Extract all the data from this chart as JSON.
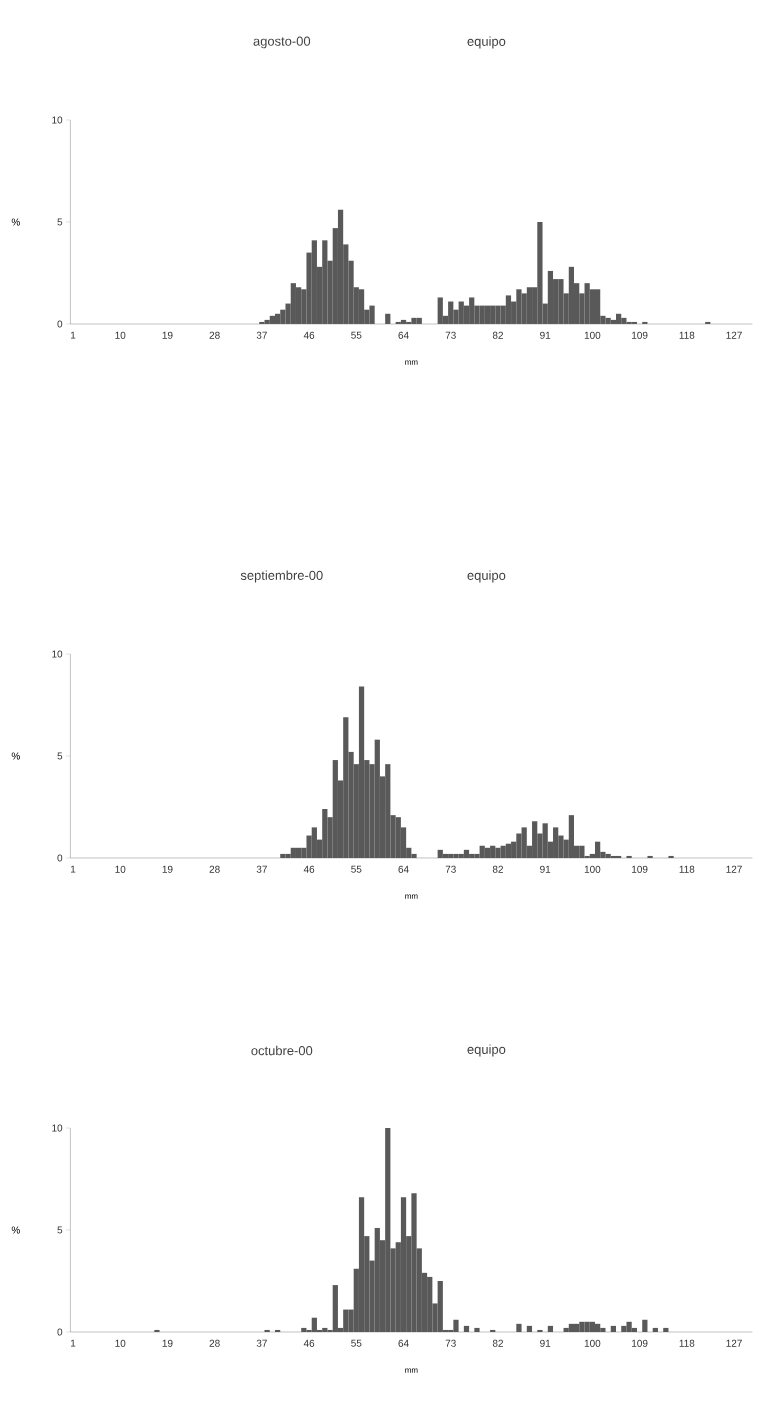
{
  "chart_data": [
    {
      "type": "bar",
      "title": "agosto-00",
      "subtitle": "equipo",
      "xlabel": "mm",
      "ylabel": "%",
      "color": "#595959",
      "ylim": [
        0,
        10
      ],
      "yticks": [
        0,
        5,
        10
      ],
      "categories": [
        "1",
        null,
        null,
        null,
        null,
        null,
        null,
        null,
        null,
        "10",
        null,
        null,
        null,
        null,
        null,
        null,
        null,
        null,
        "19",
        null,
        null,
        null,
        null,
        null,
        null,
        null,
        null,
        "28",
        null,
        null,
        null,
        null,
        null,
        null,
        null,
        null,
        "37",
        null,
        null,
        null,
        null,
        null,
        null,
        null,
        null,
        "46",
        null,
        null,
        null,
        null,
        null,
        null,
        null,
        null,
        "55",
        null,
        null,
        null,
        null,
        null,
        null,
        null,
        null,
        "64",
        null,
        null,
        null,
        null,
        null,
        null,
        null,
        null,
        "73",
        null,
        null,
        null,
        null,
        null,
        null,
        null,
        null,
        "82",
        null,
        null,
        null,
        null,
        null,
        null,
        null,
        null,
        "91",
        null,
        null,
        null,
        null,
        null,
        null,
        null,
        null,
        "100",
        null,
        null,
        null,
        null,
        null,
        null,
        null,
        null,
        "109",
        null,
        null,
        null,
        null,
        null,
        null,
        null,
        null,
        "118",
        null,
        null,
        null,
        null,
        null,
        null,
        null,
        null,
        "127",
        null,
        null,
        null
      ],
      "values": [
        0,
        0,
        0,
        0,
        0,
        0,
        0,
        0,
        0,
        0,
        0,
        0,
        0,
        0,
        0,
        0,
        0,
        0,
        0,
        0,
        0,
        0,
        0,
        0,
        0,
        0,
        0,
        0,
        0,
        0,
        0,
        0,
        0,
        0,
        0,
        0,
        0.1,
        0.2,
        0.4,
        0.5,
        0.7,
        1.0,
        2.0,
        1.8,
        1.7,
        3.5,
        4.1,
        2.8,
        4.1,
        3.1,
        4.7,
        5.6,
        3.9,
        3.1,
        1.8,
        1.7,
        0.7,
        0.9,
        0,
        0,
        0.5,
        0,
        0.1,
        0.2,
        0.1,
        0.3,
        0.3,
        0,
        0,
        0,
        1.3,
        0.4,
        1.1,
        0.7,
        1.1,
        0.9,
        1.3,
        0.9,
        0.9,
        0.9,
        0.9,
        0.9,
        0.9,
        1.4,
        1.1,
        1.7,
        1.5,
        1.8,
        1.8,
        5.0,
        1.0,
        2.6,
        2.2,
        2.2,
        1.5,
        2.8,
        2.0,
        1.5,
        2.0,
        1.7,
        1.7,
        0.4,
        0.3,
        0.2,
        0.5,
        0.3,
        0.1,
        0.1,
        0,
        0.1,
        0,
        0,
        0,
        0,
        0,
        0,
        0,
        0,
        0,
        0,
        0,
        0.1,
        0,
        0,
        0,
        0,
        0,
        0,
        0,
        0
      ]
    },
    {
      "type": "bar",
      "title": "septiembre-00",
      "subtitle": "equipo",
      "xlabel": "mm",
      "ylabel": "%",
      "color": "#595959",
      "ylim": [
        0,
        10
      ],
      "yticks": [
        0,
        5,
        10
      ],
      "categories": [
        "1",
        null,
        null,
        null,
        null,
        null,
        null,
        null,
        null,
        "10",
        null,
        null,
        null,
        null,
        null,
        null,
        null,
        null,
        "19",
        null,
        null,
        null,
        null,
        null,
        null,
        null,
        null,
        "28",
        null,
        null,
        null,
        null,
        null,
        null,
        null,
        null,
        "37",
        null,
        null,
        null,
        null,
        null,
        null,
        null,
        null,
        "46",
        null,
        null,
        null,
        null,
        null,
        null,
        null,
        null,
        "55",
        null,
        null,
        null,
        null,
        null,
        null,
        null,
        null,
        "64",
        null,
        null,
        null,
        null,
        null,
        null,
        null,
        null,
        "73",
        null,
        null,
        null,
        null,
        null,
        null,
        null,
        null,
        "82",
        null,
        null,
        null,
        null,
        null,
        null,
        null,
        null,
        "91",
        null,
        null,
        null,
        null,
        null,
        null,
        null,
        null,
        "100",
        null,
        null,
        null,
        null,
        null,
        null,
        null,
        null,
        "109",
        null,
        null,
        null,
        null,
        null,
        null,
        null,
        null,
        "118",
        null,
        null,
        null,
        null,
        null,
        null,
        null,
        null,
        "127",
        null,
        null,
        null
      ],
      "values": [
        0,
        0,
        0,
        0,
        0,
        0,
        0,
        0,
        0,
        0,
        0,
        0,
        0,
        0,
        0,
        0,
        0,
        0,
        0,
        0,
        0,
        0,
        0,
        0,
        0,
        0,
        0,
        0,
        0,
        0,
        0,
        0,
        0,
        0,
        0,
        0,
        0,
        0,
        0,
        0,
        0.2,
        0.2,
        0.5,
        0.5,
        0.5,
        1.1,
        1.5,
        0.9,
        2.4,
        2.0,
        4.8,
        3.8,
        6.9,
        5.2,
        4.6,
        8.4,
        4.8,
        4.6,
        5.8,
        4.0,
        4.6,
        2.1,
        2.0,
        1.5,
        0.5,
        0.2,
        0,
        0,
        0,
        0,
        0.4,
        0.2,
        0.2,
        0.2,
        0.2,
        0.4,
        0.2,
        0.2,
        0.6,
        0.5,
        0.6,
        0.5,
        0.6,
        0.7,
        0.8,
        1.2,
        1.5,
        0.6,
        1.8,
        1.2,
        1.7,
        0.8,
        1.5,
        1.1,
        0.9,
        2.1,
        0.6,
        0.6,
        0.1,
        0.2,
        0.8,
        0.3,
        0.2,
        0.1,
        0.1,
        0,
        0.1,
        0,
        0,
        0,
        0.1,
        0,
        0,
        0,
        0.1,
        0,
        0,
        0,
        0,
        0,
        0,
        0,
        0,
        0,
        0,
        0,
        0,
        0,
        0,
        0
      ]
    },
    {
      "type": "bar",
      "title": "octubre-00",
      "subtitle": "equipo",
      "xlabel": "mm",
      "ylabel": "%",
      "color": "#595959",
      "ylim": [
        0,
        10
      ],
      "yticks": [
        0,
        5,
        10
      ],
      "categories": [
        "1",
        null,
        null,
        null,
        null,
        null,
        null,
        null,
        null,
        "10",
        null,
        null,
        null,
        null,
        null,
        null,
        null,
        null,
        "19",
        null,
        null,
        null,
        null,
        null,
        null,
        null,
        null,
        "28",
        null,
        null,
        null,
        null,
        null,
        null,
        null,
        null,
        "37",
        null,
        null,
        null,
        null,
        null,
        null,
        null,
        null,
        "46",
        null,
        null,
        null,
        null,
        null,
        null,
        null,
        null,
        "55",
        null,
        null,
        null,
        null,
        null,
        null,
        null,
        null,
        "64",
        null,
        null,
        null,
        null,
        null,
        null,
        null,
        null,
        "73",
        null,
        null,
        null,
        null,
        null,
        null,
        null,
        null,
        "82",
        null,
        null,
        null,
        null,
        null,
        null,
        null,
        null,
        "91",
        null,
        null,
        null,
        null,
        null,
        null,
        null,
        null,
        "100",
        null,
        null,
        null,
        null,
        null,
        null,
        null,
        null,
        "109",
        null,
        null,
        null,
        null,
        null,
        null,
        null,
        null,
        "118",
        null,
        null,
        null,
        null,
        null,
        null,
        null,
        null,
        "127",
        null,
        null,
        null
      ],
      "values": [
        0,
        0,
        0,
        0,
        0,
        0,
        0,
        0,
        0,
        0,
        0,
        0,
        0,
        0,
        0,
        0,
        0.1,
        0,
        0,
        0,
        0,
        0,
        0,
        0,
        0,
        0,
        0,
        0,
        0,
        0,
        0,
        0,
        0,
        0,
        0,
        0,
        0,
        0.1,
        0,
        0.1,
        0,
        0,
        0,
        0,
        0.2,
        0.1,
        0.7,
        0.1,
        0.2,
        0.1,
        2.3,
        0.2,
        1.1,
        1.1,
        3.1,
        6.6,
        4.7,
        3.5,
        5.1,
        4.5,
        10.0,
        4.1,
        4.4,
        6.6,
        4.7,
        6.8,
        4.1,
        2.9,
        2.7,
        1.4,
        2.5,
        0.1,
        0.1,
        0.6,
        0,
        0.3,
        0,
        0.2,
        0,
        0,
        0.1,
        0,
        0,
        0,
        0,
        0.4,
        0,
        0.3,
        0,
        0.1,
        0,
        0.3,
        0,
        0,
        0.2,
        0.4,
        0.4,
        0.5,
        0.5,
        0.5,
        0.4,
        0.2,
        0,
        0.3,
        0,
        0.3,
        0.5,
        0.2,
        0,
        0.6,
        0,
        0.2,
        0,
        0.2,
        0,
        0,
        0,
        0,
        0,
        0,
        0,
        0,
        0,
        0,
        0,
        0,
        0,
        0,
        0,
        0
      ]
    }
  ]
}
